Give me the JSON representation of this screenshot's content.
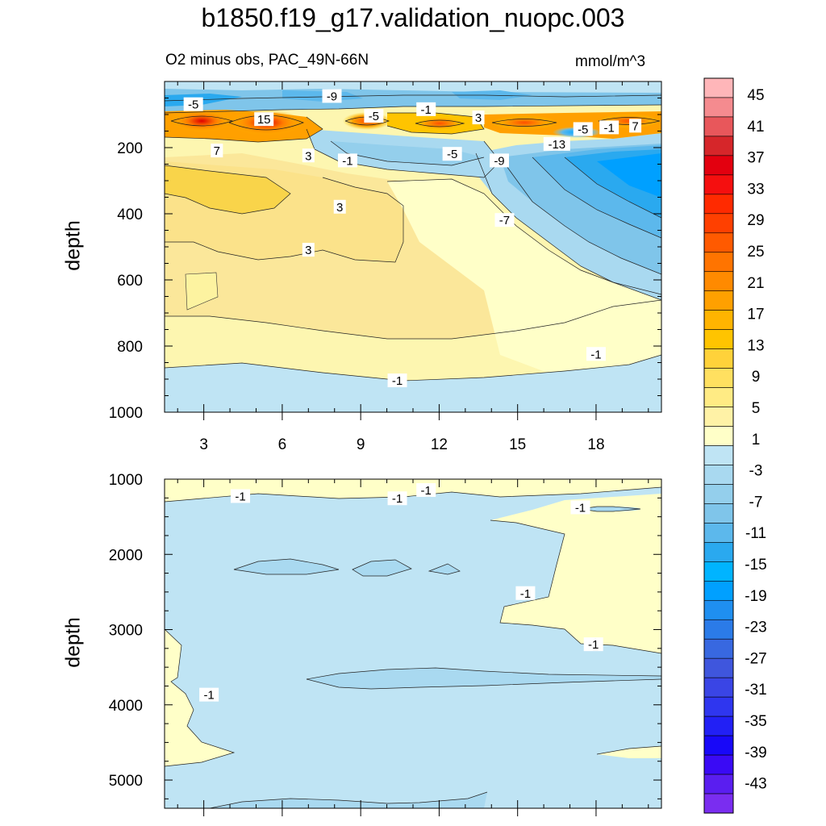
{
  "title": "b1850.f19_g17.validation_nuopc.003",
  "subtitle_left": "O2 minus obs, PAC_49N-66N",
  "subtitle_right": "mmol/m^3",
  "chart_data": [
    {
      "type": "heatmap",
      "panel": "upper",
      "ylabel": "depth",
      "xlabel": "",
      "x_tick_labels": [
        "3",
        "6",
        "9",
        "12",
        "15",
        "18"
      ],
      "x_ticks": [
        3,
        6,
        9,
        12,
        15,
        18
      ],
      "xlim": [
        1.5,
        20.5
      ],
      "y_tick_labels": [
        "200",
        "400",
        "600",
        "800",
        "1000"
      ],
      "y_ticks": [
        200,
        400,
        600,
        800,
        1000
      ],
      "ylim": [
        1000,
        0
      ],
      "contour_labels": [
        {
          "text": "-5",
          "x": 2.6,
          "y": 70
        },
        {
          "text": "-9",
          "x": 7.9,
          "y": 45
        },
        {
          "text": "15",
          "x": 5.3,
          "y": 115
        },
        {
          "text": "-5",
          "x": 9.5,
          "y": 105
        },
        {
          "text": "-1",
          "x": 11.5,
          "y": 85
        },
        {
          "text": "3",
          "x": 13.5,
          "y": 110
        },
        {
          "text": "7",
          "x": 3.5,
          "y": 210
        },
        {
          "text": "3",
          "x": 7.0,
          "y": 225
        },
        {
          "text": "-1",
          "x": 8.5,
          "y": 240
        },
        {
          "text": "-5",
          "x": 12.5,
          "y": 220
        },
        {
          "text": "-9",
          "x": 14.3,
          "y": 240
        },
        {
          "text": "-13",
          "x": 16.5,
          "y": 190
        },
        {
          "text": "-5",
          "x": 17.5,
          "y": 145
        },
        {
          "text": "-1",
          "x": 18.5,
          "y": 140
        },
        {
          "text": "7",
          "x": 19.5,
          "y": 135
        },
        {
          "text": "3",
          "x": 8.2,
          "y": 380
        },
        {
          "text": "-7",
          "x": 14.5,
          "y": 420
        },
        {
          "text": "3",
          "x": 7.0,
          "y": 510
        },
        {
          "text": "-1",
          "x": 18.0,
          "y": 825
        },
        {
          "text": "-1",
          "x": 10.4,
          "y": 905
        }
      ]
    },
    {
      "type": "heatmap",
      "panel": "lower",
      "ylabel": "depth",
      "xlabel": "",
      "xlim": [
        1.5,
        20.5
      ],
      "y_tick_labels": [
        "1000",
        "2000",
        "3000",
        "4000",
        "5000"
      ],
      "y_ticks": [
        1000,
        2000,
        3000,
        4000,
        5000
      ],
      "ylim": [
        5375,
        1000
      ],
      "contour_labels": [
        {
          "text": "-1",
          "x": 4.4,
          "y": 1230
        },
        {
          "text": "-1",
          "x": 10.4,
          "y": 1260
        },
        {
          "text": "-1",
          "x": 11.5,
          "y": 1150
        },
        {
          "text": "-1",
          "x": 17.4,
          "y": 1380
        },
        {
          "text": "-1",
          "x": 15.3,
          "y": 2520
        },
        {
          "text": "-1",
          "x": 17.9,
          "y": 3200
        },
        {
          "text": "-1",
          "x": 3.2,
          "y": 3870
        }
      ]
    }
  ],
  "colorbar": {
    "labels": [
      "45",
      "41",
      "37",
      "33",
      "29",
      "25",
      "21",
      "17",
      "13",
      "9",
      "5",
      "1",
      "-3",
      "-7",
      "-11",
      "-15",
      "-19",
      "-23",
      "-27",
      "-31",
      "-35",
      "-39",
      "-43"
    ],
    "colors": [
      "#ffb6b9",
      "#f58b8f",
      "#e8575b",
      "#d6262a",
      "#e3000f",
      "#f50f0f",
      "#ff2a00",
      "#ff4000",
      "#ff5a00",
      "#ff7400",
      "#ff8a00",
      "#ffa000",
      "#ffb400",
      "#ffc400",
      "#ffd23a",
      "#ffe060",
      "#ffeb84",
      "#fff2a6",
      "#ffffc8",
      "#bfe4f4",
      "#a9d9f0",
      "#94cfec",
      "#7fc5ea",
      "#5cb8ec",
      "#2aa9ef",
      "#00b4ff",
      "#00a0ff",
      "#1f8ff0",
      "#2b7be8",
      "#3868e0",
      "#3f56dd",
      "#3a45e5",
      "#2f36ef",
      "#2220f5",
      "#1808f8",
      "#3a0af5",
      "#5a1ef0",
      "#7a2df0"
    ]
  }
}
